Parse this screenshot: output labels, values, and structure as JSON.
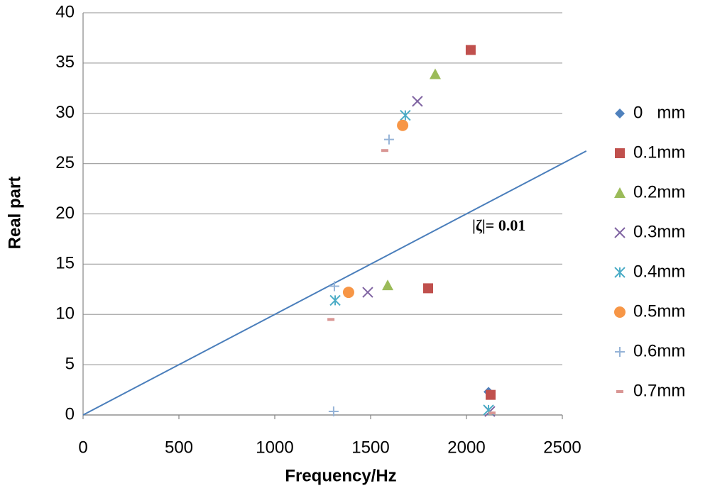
{
  "chart_data": {
    "type": "scatter",
    "xlabel": "Frequency/Hz",
    "ylabel": "Real part",
    "annotation": "|ζ|= 0.01",
    "xlim": [
      0,
      2500
    ],
    "xticks": [
      0,
      500,
      1000,
      1500,
      2000,
      2500
    ],
    "ylim": [
      0,
      40
    ],
    "yticks": [
      0,
      5,
      10,
      15,
      20,
      25,
      30,
      35,
      40
    ],
    "grid": true,
    "legend": "right",
    "reference_line": {
      "color": "#4a7ebb",
      "x": [
        0,
        2625
      ],
      "y": [
        0,
        26.25
      ]
    },
    "series": [
      {
        "name": "0   mm",
        "color": "#4f81bd",
        "marker": "diamond",
        "x": [
          2115
        ],
        "values": [
          2.3
        ]
      },
      {
        "name": "0.1mm",
        "color": "#c0504d",
        "marker": "square",
        "x": [
          2022,
          1800,
          2126
        ],
        "values": [
          36.3,
          12.6,
          2.0
        ]
      },
      {
        "name": "0.2mm",
        "color": "#9bbb59",
        "marker": "triangle",
        "x": [
          1837,
          1589
        ],
        "values": [
          33.9,
          12.9
        ]
      },
      {
        "name": "0.3mm",
        "color": "#8064a2",
        "marker": "x",
        "x": [
          1744,
          1485,
          2122
        ],
        "values": [
          31.2,
          12.2,
          0.35
        ]
      },
      {
        "name": "0.4mm",
        "color": "#4bacc6",
        "marker": "star",
        "x": [
          1681,
          1315,
          2115
        ],
        "values": [
          29.8,
          11.4,
          0.5
        ]
      },
      {
        "name": "0.5mm",
        "color": "#f79646",
        "marker": "circle",
        "x": [
          1667,
          1385
        ],
        "values": [
          28.8,
          12.2
        ]
      },
      {
        "name": "0.6mm",
        "color": "#95b3d7",
        "marker": "plus",
        "x": [
          1596,
          1311,
          1307
        ],
        "values": [
          27.4,
          12.8,
          0.35
        ]
      },
      {
        "name": "0.7mm",
        "color": "#d99694",
        "marker": "dash",
        "x": [
          1574,
          1293,
          2133
        ],
        "values": [
          26.3,
          9.5,
          0.2
        ]
      }
    ]
  }
}
